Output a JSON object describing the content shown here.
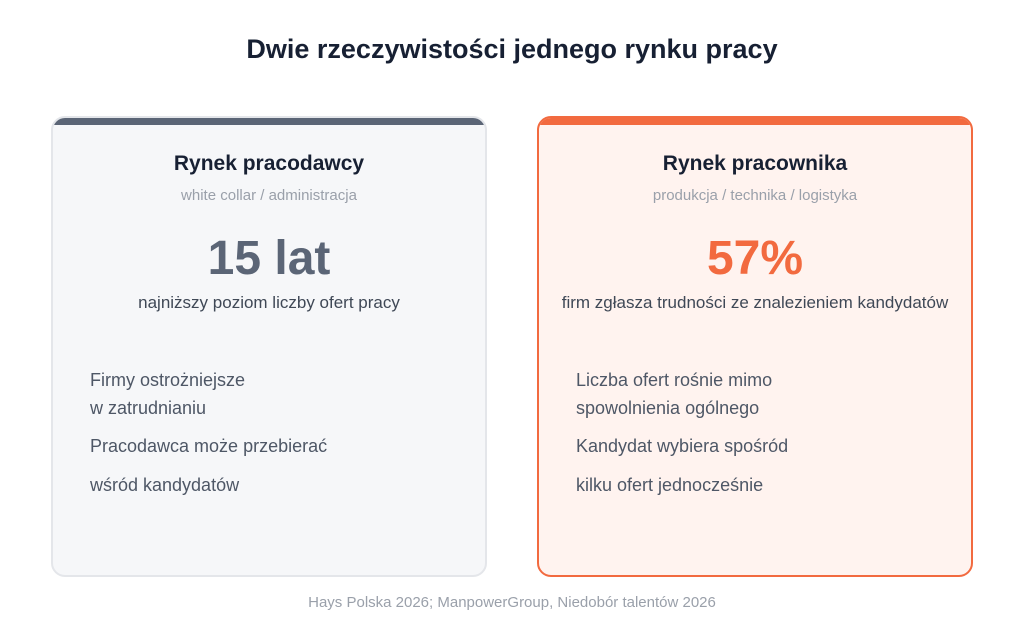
{
  "title": "Dwie rzeczywistości jednego rynku pracy",
  "left": {
    "title": "Rynek pracodawcy",
    "subtitle": "white collar / administracja",
    "stat": "15 lat",
    "stat_desc": "najniższy poziom liczby ofert pracy",
    "points": [
      "Firmy ostrożniejsze",
      "w zatrudnianiu",
      "Pracodawca może przebierać",
      "wśród kandydatów"
    ],
    "accent": "#5b6576"
  },
  "right": {
    "title": "Rynek pracownika",
    "subtitle": "produkcja / technika / logistyka",
    "stat": "57%",
    "stat_desc": "firm zgłasza trudności ze znalezieniem kandydatów",
    "points": [
      "Liczba ofert rośnie mimo",
      "spowolnienia ogólnego",
      "Kandydat wybiera spośród",
      "kilku ofert jednocześnie"
    ],
    "accent": "#f26a3f"
  },
  "footer": "Hays Polska 2026; ManpowerGroup, Niedobór talentów 2026"
}
